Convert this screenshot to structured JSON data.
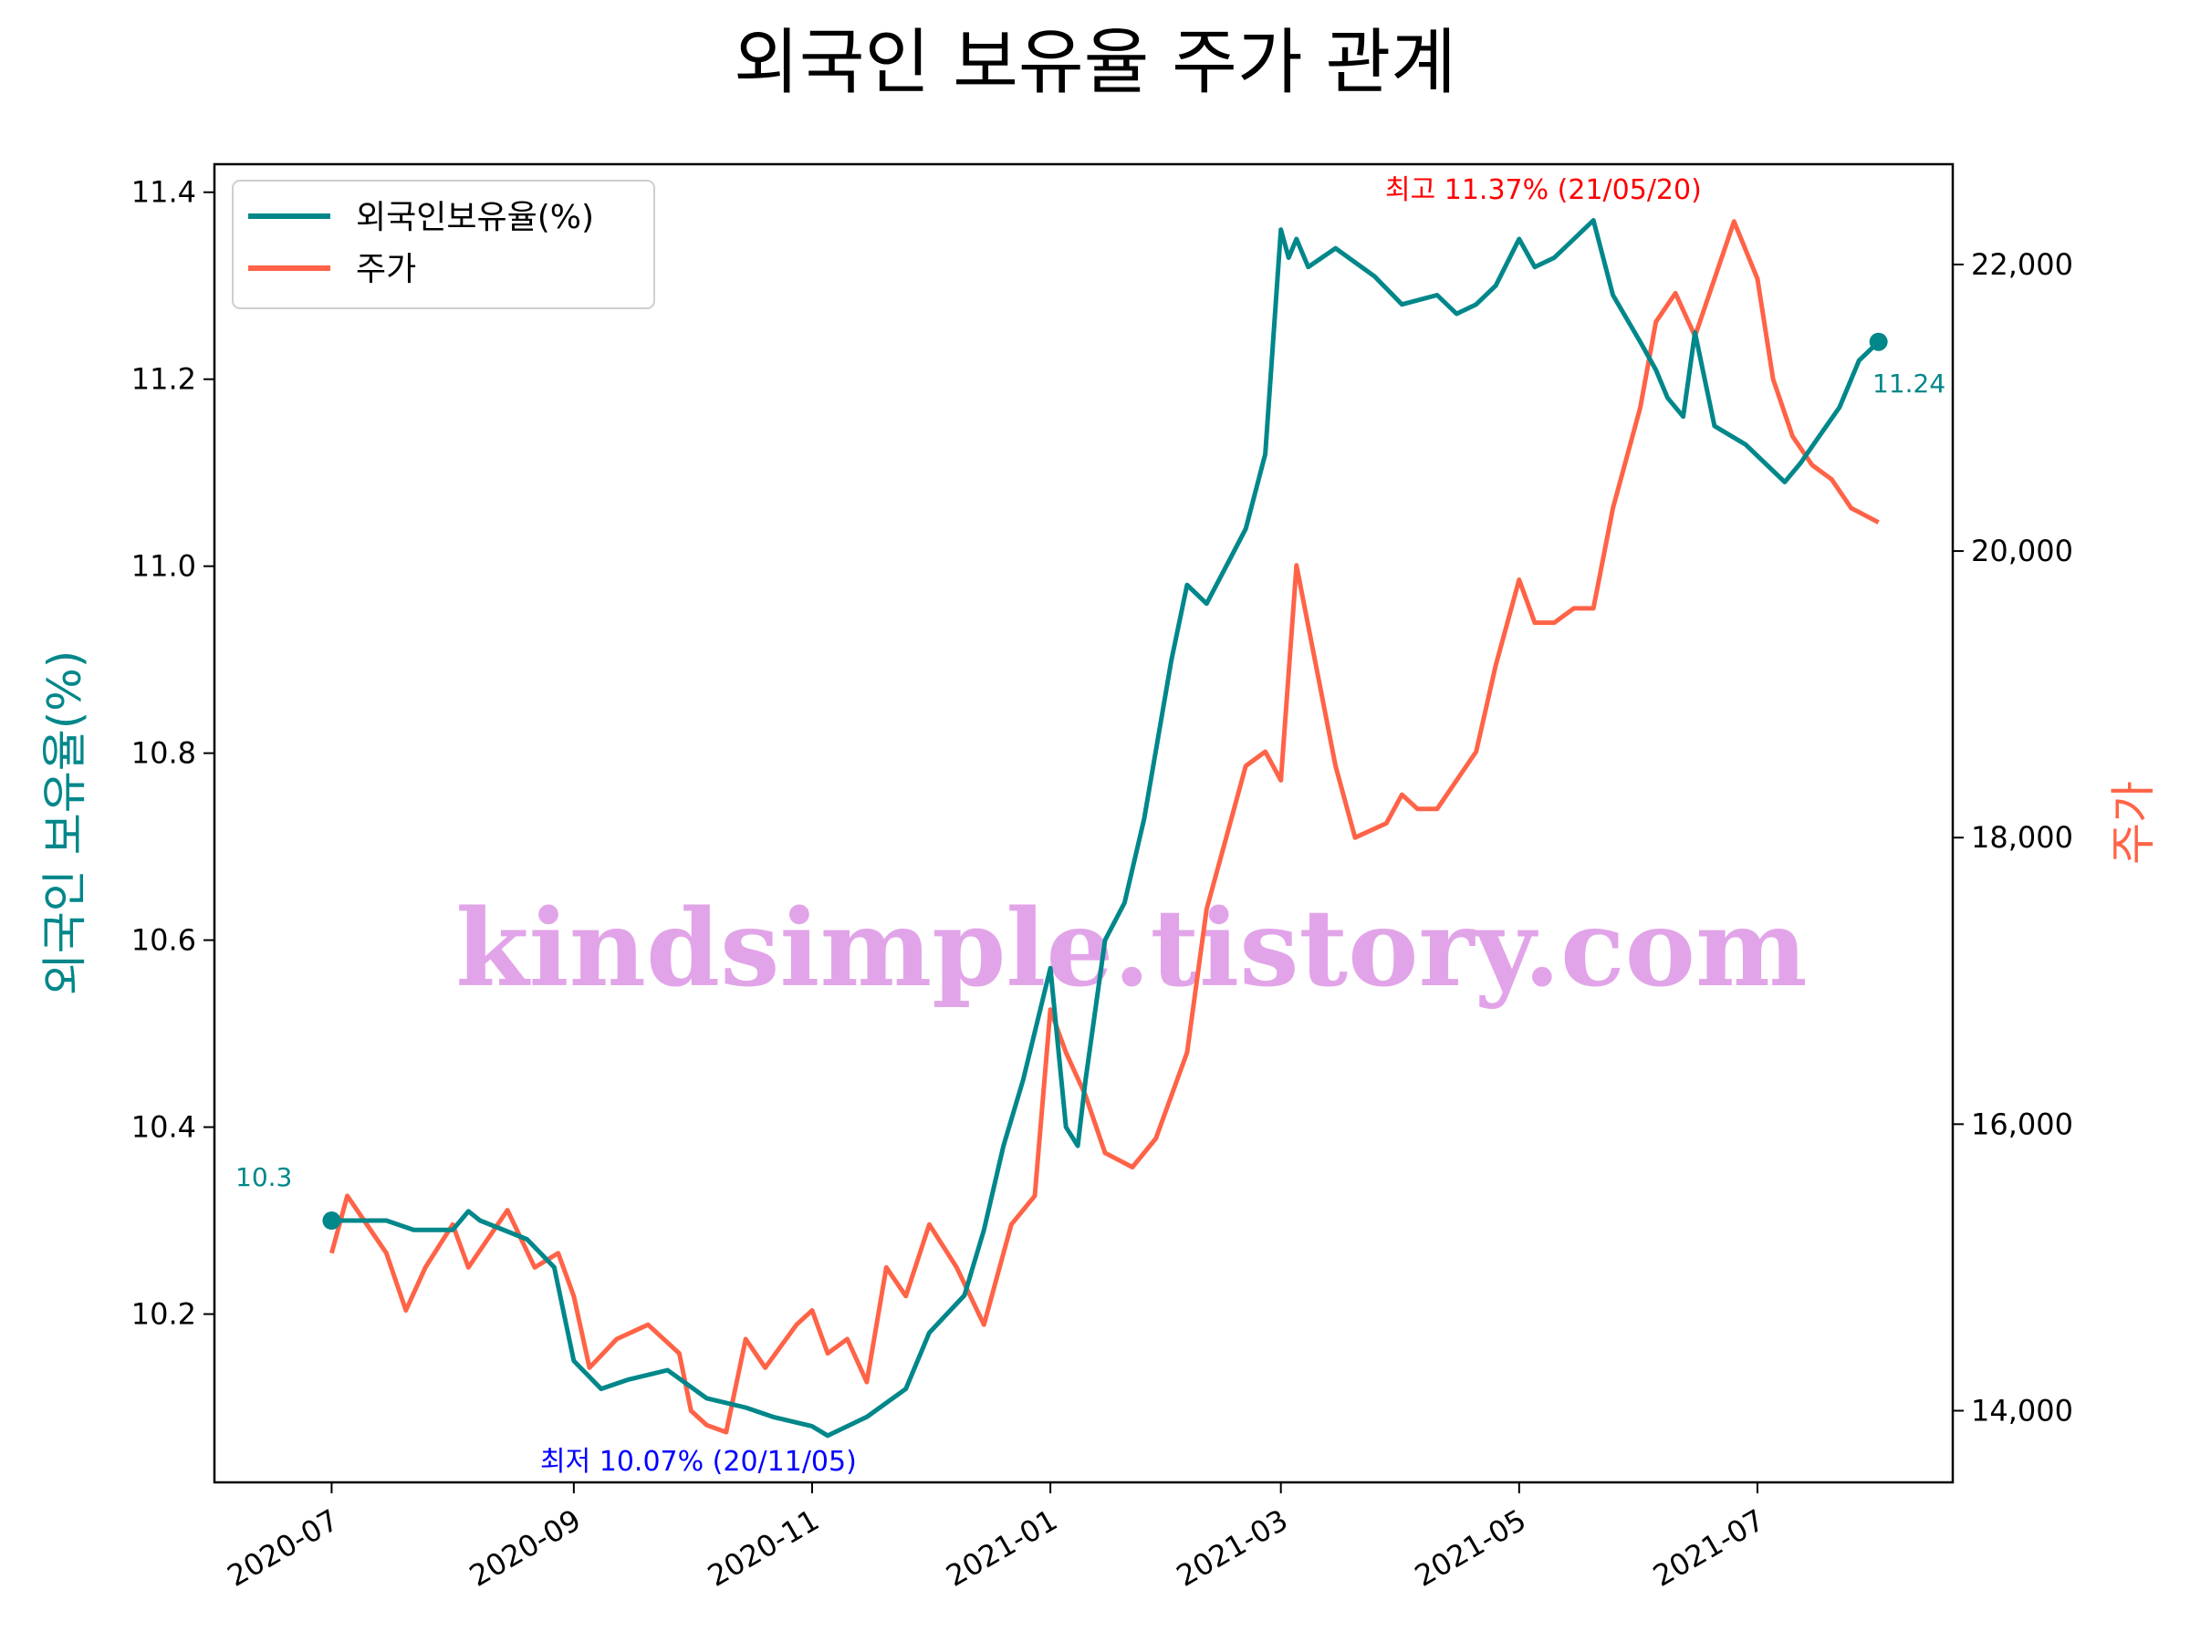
{
  "chart_data": {
    "type": "line",
    "title": "외국인 보유율 주가 관계",
    "ylabel_left": "외국인 보유율(%)",
    "ylabel_right": "주가",
    "x_ticks": [
      "2020-07",
      "2020-09",
      "2020-11",
      "2021-01",
      "2021-03",
      "2021-05",
      "2021-07"
    ],
    "y_left_ticks": [
      "10.2",
      "10.4",
      "10.6",
      "10.8",
      "11.0",
      "11.2",
      "11.4"
    ],
    "y_right_ticks": [
      "14,000",
      "16,000",
      "18,000",
      "20,000",
      "22,000"
    ],
    "ylim_left": [
      10.02,
      11.43
    ],
    "ylim_right": [
      13500,
      22700
    ],
    "legend": {
      "placement": "upper-left",
      "entries": [
        "외국인보유율(%)",
        "주가"
      ]
    },
    "colors": {
      "ratio": "#00878a",
      "price": "#ff6347",
      "max": "#ff0000",
      "min": "#0000ff",
      "watermark": "#df9be6"
    },
    "annotations": {
      "start_label": "10.3",
      "end_label": "11.24",
      "max_label": "최고 11.37% (21/05/20)",
      "min_label": "최저 10.07% (20/11/05)"
    },
    "watermark": "kindsimple.tistory.com",
    "series": [
      {
        "name": "외국인보유율(%)",
        "axis": "left",
        "points": [
          [
            "2020-07-01",
            10.3
          ],
          [
            "2020-07-15",
            10.3
          ],
          [
            "2020-07-22",
            10.29
          ],
          [
            "2020-08-01",
            10.29
          ],
          [
            "2020-08-05",
            10.31
          ],
          [
            "2020-08-08",
            10.3
          ],
          [
            "2020-08-20",
            10.28
          ],
          [
            "2020-08-27",
            10.25
          ],
          [
            "2020-09-01",
            10.15
          ],
          [
            "2020-09-08",
            10.12
          ],
          [
            "2020-09-15",
            10.13
          ],
          [
            "2020-09-25",
            10.14
          ],
          [
            "2020-10-05",
            10.11
          ],
          [
            "2020-10-15",
            10.1
          ],
          [
            "2020-10-22",
            10.09
          ],
          [
            "2020-11-01",
            10.08
          ],
          [
            "2020-11-05",
            10.07
          ],
          [
            "2020-11-15",
            10.09
          ],
          [
            "2020-11-25",
            10.12
          ],
          [
            "2020-12-01",
            10.18
          ],
          [
            "2020-12-10",
            10.22
          ],
          [
            "2020-12-15",
            10.29
          ],
          [
            "2020-12-20",
            10.38
          ],
          [
            "2020-12-25",
            10.45
          ],
          [
            "2021-01-01",
            10.57
          ],
          [
            "2021-01-05",
            10.4
          ],
          [
            "2021-01-08",
            10.38
          ],
          [
            "2021-01-10",
            10.45
          ],
          [
            "2021-01-15",
            10.6
          ],
          [
            "2021-01-20",
            10.64
          ],
          [
            "2021-01-25",
            10.73
          ],
          [
            "2021-02-01",
            10.9
          ],
          [
            "2021-02-05",
            10.98
          ],
          [
            "2021-02-10",
            10.96
          ],
          [
            "2021-02-15",
            11.0
          ],
          [
            "2021-02-20",
            11.04
          ],
          [
            "2021-02-25",
            11.12
          ],
          [
            "2021-03-01",
            11.36
          ],
          [
            "2021-03-03",
            11.33
          ],
          [
            "2021-03-05",
            11.35
          ],
          [
            "2021-03-08",
            11.32
          ],
          [
            "2021-03-15",
            11.34
          ],
          [
            "2021-03-25",
            11.31
          ],
          [
            "2021-04-01",
            11.28
          ],
          [
            "2021-04-10",
            11.29
          ],
          [
            "2021-04-15",
            11.27
          ],
          [
            "2021-04-20",
            11.28
          ],
          [
            "2021-04-25",
            11.3
          ],
          [
            "2021-05-01",
            11.35
          ],
          [
            "2021-05-05",
            11.32
          ],
          [
            "2021-05-10",
            11.33
          ],
          [
            "2021-05-15",
            11.35
          ],
          [
            "2021-05-20",
            11.37
          ],
          [
            "2021-05-25",
            11.29
          ],
          [
            "2021-06-01",
            11.24
          ],
          [
            "2021-06-05",
            11.21
          ],
          [
            "2021-06-08",
            11.18
          ],
          [
            "2021-06-12",
            11.16
          ],
          [
            "2021-06-15",
            11.25
          ],
          [
            "2021-06-20",
            11.15
          ],
          [
            "2021-06-28",
            11.13
          ],
          [
            "2021-07-03",
            11.11
          ],
          [
            "2021-07-08",
            11.09
          ],
          [
            "2021-07-12",
            11.11
          ],
          [
            "2021-07-17",
            11.14
          ],
          [
            "2021-07-22",
            11.17
          ],
          [
            "2021-07-27",
            11.22
          ],
          [
            "2021-08-01",
            11.24
          ]
        ]
      },
      {
        "name": "주가",
        "axis": "right",
        "points": [
          [
            "2020-07-01",
            15.1
          ],
          [
            "2020-07-05",
            15.5
          ],
          [
            "2020-07-10",
            15.3
          ],
          [
            "2020-07-15",
            15.1
          ],
          [
            "2020-07-20",
            14.7
          ],
          [
            "2020-07-25",
            15.0
          ],
          [
            "2020-08-01",
            15.3
          ],
          [
            "2020-08-05",
            15.0
          ],
          [
            "2020-08-10",
            15.2
          ],
          [
            "2020-08-15",
            15.4
          ],
          [
            "2020-08-22",
            15.0
          ],
          [
            "2020-08-28",
            15.1
          ],
          [
            "2020-09-01",
            14.8
          ],
          [
            "2020-09-05",
            14.3
          ],
          [
            "2020-09-12",
            14.5
          ],
          [
            "2020-09-20",
            14.6
          ],
          [
            "2020-09-28",
            14.4
          ],
          [
            "2020-10-01",
            14.0
          ],
          [
            "2020-10-05",
            13.9
          ],
          [
            "2020-10-10",
            13.85
          ],
          [
            "2020-10-15",
            14.5
          ],
          [
            "2020-10-20",
            14.3
          ],
          [
            "2020-10-28",
            14.6
          ],
          [
            "2020-11-01",
            14.7
          ],
          [
            "2020-11-05",
            14.4
          ],
          [
            "2020-11-10",
            14.5
          ],
          [
            "2020-11-15",
            14.2
          ],
          [
            "2020-11-20",
            15.0
          ],
          [
            "2020-11-25",
            14.8
          ],
          [
            "2020-12-01",
            15.3
          ],
          [
            "2020-12-08",
            15.0
          ],
          [
            "2020-12-15",
            14.6
          ],
          [
            "2020-12-22",
            15.3
          ],
          [
            "2020-12-28",
            15.5
          ],
          [
            "2021-01-01",
            16.8
          ],
          [
            "2021-01-05",
            16.5
          ],
          [
            "2021-01-10",
            16.2
          ],
          [
            "2021-01-15",
            15.8
          ],
          [
            "2021-01-22",
            15.7
          ],
          [
            "2021-01-28",
            15.9
          ],
          [
            "2021-02-01",
            16.2
          ],
          [
            "2021-02-05",
            16.5
          ],
          [
            "2021-02-10",
            17.5
          ],
          [
            "2021-02-15",
            18.0
          ],
          [
            "2021-02-20",
            18.5
          ],
          [
            "2021-02-25",
            18.6
          ],
          [
            "2021-03-01",
            18.4
          ],
          [
            "2021-03-05",
            19.9
          ],
          [
            "2021-03-10",
            19.2
          ],
          [
            "2021-03-15",
            18.5
          ],
          [
            "2021-03-20",
            18.0
          ],
          [
            "2021-03-28",
            18.1
          ],
          [
            "2021-04-01",
            18.3
          ],
          [
            "2021-04-05",
            18.2
          ],
          [
            "2021-04-10",
            18.2
          ],
          [
            "2021-04-15",
            18.4
          ],
          [
            "2021-04-20",
            18.6
          ],
          [
            "2021-04-25",
            19.2
          ],
          [
            "2021-05-01",
            19.8
          ],
          [
            "2021-05-05",
            19.5
          ],
          [
            "2021-05-10",
            19.5
          ],
          [
            "2021-05-15",
            19.6
          ],
          [
            "2021-05-20",
            19.6
          ],
          [
            "2021-05-25",
            20.3
          ],
          [
            "2021-06-01",
            21.0
          ],
          [
            "2021-06-05",
            21.6
          ],
          [
            "2021-06-10",
            21.8
          ],
          [
            "2021-06-15",
            21.5
          ],
          [
            "2021-06-20",
            21.9
          ],
          [
            "2021-06-25",
            22.3
          ],
          [
            "2021-07-01",
            21.9
          ],
          [
            "2021-07-05",
            21.2
          ],
          [
            "2021-07-10",
            20.8
          ],
          [
            "2021-07-15",
            20.6
          ],
          [
            "2021-07-20",
            20.5
          ],
          [
            "2021-07-25",
            20.3
          ],
          [
            "2021-08-01",
            20.2
          ]
        ]
      }
    ]
  }
}
